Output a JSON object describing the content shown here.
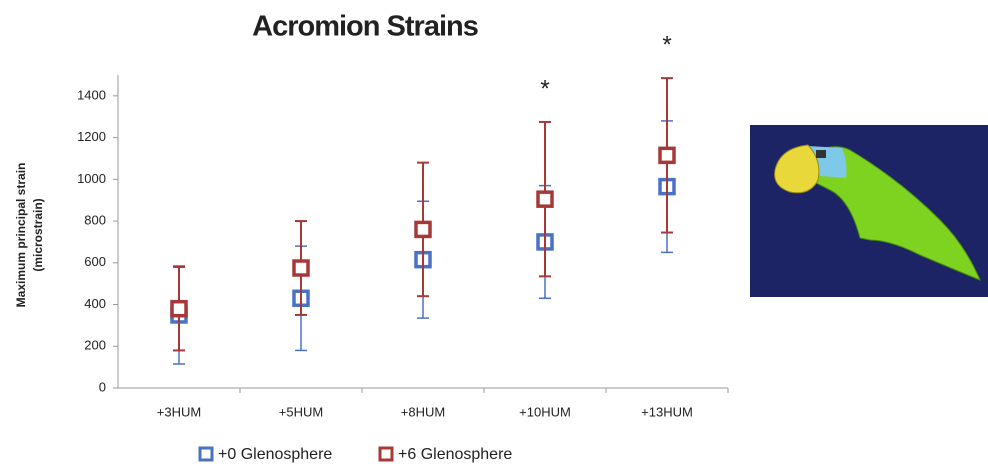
{
  "chart_data": {
    "type": "errorbar",
    "title": "Acromion Strains",
    "y_label": [
      "Maximum principal strain",
      "(microstrain)"
    ],
    "categories": [
      "+3HUM",
      "+5HUM",
      "+8HUM",
      "+10HUM",
      "+13HUM"
    ],
    "series": [
      {
        "name": "+0 Glenosphere",
        "color": "#4a72c4",
        "values": [
          350,
          430,
          615,
          700,
          965
        ],
        "errors": [
          235,
          250,
          280,
          270,
          315
        ]
      },
      {
        "name": "+6 Glenosphere",
        "color": "#a83838",
        "values": [
          380,
          575,
          760,
          905,
          1115
        ],
        "errors": [
          200,
          225,
          320,
          370,
          370
        ]
      }
    ],
    "annotations": [
      {
        "text": "*",
        "category": "+10HUM"
      },
      {
        "text": "*",
        "category": "+13HUM"
      }
    ],
    "ylim": [
      0,
      1500
    ],
    "yticks": [
      0,
      200,
      400,
      600,
      800,
      1000,
      1200,
      1400
    ],
    "grid": false,
    "legend": "bottom"
  }
}
